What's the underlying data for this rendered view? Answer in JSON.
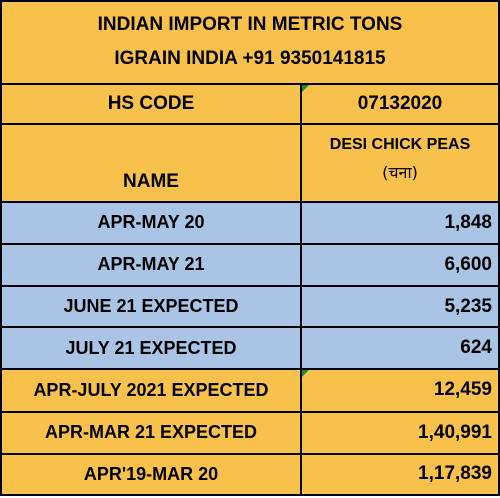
{
  "title": {
    "line1": "INDIAN IMPORT IN METRIC TONS",
    "line2": "IGRAIN INDIA +91 9350141815"
  },
  "hs_code": {
    "label": "HS CODE",
    "value": "07132020"
  },
  "header": {
    "name_label": "NAME",
    "product_name": "DESI CHICK PEAS",
    "product_local": "(चना)"
  },
  "rows": [
    {
      "label": "APR-MAY 20",
      "value": "1,848",
      "color": "#a9c4e4"
    },
    {
      "label": "APR-MAY 21",
      "value": "6,600",
      "color": "#a9c4e4"
    },
    {
      "label": "JUNE 21 EXPECTED",
      "value": "5,235",
      "color": "#a9c4e4"
    },
    {
      "label": "JULY 21 EXPECTED",
      "value": "624",
      "color": "#a9c4e4"
    },
    {
      "label": "APR-JULY 2021 EXPECTED",
      "value": "12,459",
      "color": "#f7c14c"
    },
    {
      "label": "APR-MAR 21 EXPECTED",
      "value": "1,40,991",
      "color": "#f7c14c"
    },
    {
      "label": "APR'19-MAR 20",
      "value": "1,17,839",
      "color": "#f7c14c"
    }
  ],
  "colors": {
    "gold": "#f7c14c",
    "blue": "#a9c4e4",
    "comment_marker": "#1e8a3c"
  }
}
